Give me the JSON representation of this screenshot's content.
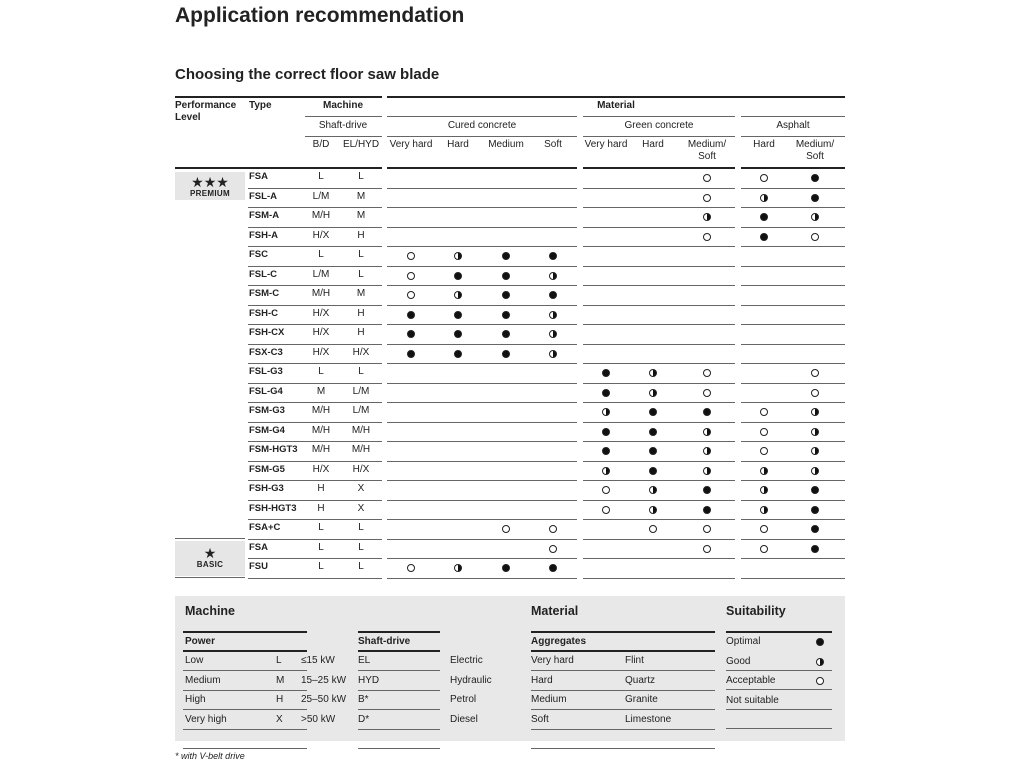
{
  "title": "Application recommendation",
  "subtitle": "Choosing the correct floor saw blade",
  "table": {
    "header": {
      "performance_level": "Performance Level",
      "type": "Type",
      "machine": "Machine",
      "shaft_drive": "Shaft-drive",
      "bd": "B/D",
      "elhyd": "EL/HYD",
      "material": "Material",
      "groups": [
        "Cured concrete",
        "Green concrete",
        "Asphalt"
      ],
      "columns": [
        "Very hard",
        "Hard",
        "Medium",
        "Soft",
        "Very hard",
        "Hard",
        "Medium/ Soft",
        "Hard",
        "Medium/ Soft"
      ]
    },
    "levels": [
      {
        "stars": "★★★",
        "label": "PREMIUM"
      },
      {
        "stars": "★",
        "label": "BASIC"
      }
    ],
    "rows": [
      {
        "type": "FSA",
        "bd": "L",
        "elhyd": "L",
        "r": [
          "",
          "",
          "",
          "",
          "",
          "",
          "acceptable",
          "acceptable",
          "optimal"
        ]
      },
      {
        "type": "FSL-A",
        "bd": "L/M",
        "elhyd": "M",
        "r": [
          "",
          "",
          "",
          "",
          "",
          "",
          "acceptable",
          "good",
          "optimal"
        ]
      },
      {
        "type": "FSM-A",
        "bd": "M/H",
        "elhyd": "M",
        "r": [
          "",
          "",
          "",
          "",
          "",
          "",
          "good",
          "optimal",
          "good"
        ]
      },
      {
        "type": "FSH-A",
        "bd": "H/X",
        "elhyd": "H",
        "r": [
          "",
          "",
          "",
          "",
          "",
          "",
          "acceptable",
          "optimal",
          "acceptable"
        ]
      },
      {
        "type": "FSC",
        "bd": "L",
        "elhyd": "L",
        "r": [
          "acceptable",
          "good",
          "optimal",
          "optimal",
          "",
          "",
          "",
          "",
          ""
        ]
      },
      {
        "type": "FSL-C",
        "bd": "L/M",
        "elhyd": "L",
        "r": [
          "acceptable",
          "optimal",
          "optimal",
          "good",
          "",
          "",
          "",
          "",
          ""
        ]
      },
      {
        "type": "FSM-C",
        "bd": "M/H",
        "elhyd": "M",
        "r": [
          "acceptable",
          "good",
          "optimal",
          "optimal",
          "",
          "",
          "",
          "",
          ""
        ]
      },
      {
        "type": "FSH-C",
        "bd": "H/X",
        "elhyd": "H",
        "r": [
          "optimal",
          "optimal",
          "optimal",
          "good",
          "",
          "",
          "",
          "",
          ""
        ]
      },
      {
        "type": "FSH-CX",
        "bd": "H/X",
        "elhyd": "H",
        "r": [
          "optimal",
          "optimal",
          "optimal",
          "good",
          "",
          "",
          "",
          "",
          ""
        ]
      },
      {
        "type": "FSX-C3",
        "bd": "H/X",
        "elhyd": "H/X",
        "r": [
          "optimal",
          "optimal",
          "optimal",
          "good",
          "",
          "",
          "",
          "",
          ""
        ]
      },
      {
        "type": "FSL-G3",
        "bd": "L",
        "elhyd": "L",
        "r": [
          "",
          "",
          "",
          "",
          "optimal",
          "good",
          "acceptable",
          "",
          "acceptable"
        ]
      },
      {
        "type": "FSL-G4",
        "bd": "M",
        "elhyd": "L/M",
        "r": [
          "",
          "",
          "",
          "",
          "optimal",
          "good",
          "acceptable",
          "",
          "acceptable"
        ]
      },
      {
        "type": "FSM-G3",
        "bd": "M/H",
        "elhyd": "L/M",
        "r": [
          "",
          "",
          "",
          "",
          "good",
          "optimal",
          "optimal",
          "acceptable",
          "good"
        ]
      },
      {
        "type": "FSM-G4",
        "bd": "M/H",
        "elhyd": "M/H",
        "r": [
          "",
          "",
          "",
          "",
          "optimal",
          "optimal",
          "good",
          "acceptable",
          "good"
        ]
      },
      {
        "type": "FSM-HGT3",
        "bd": "M/H",
        "elhyd": "M/H",
        "r": [
          "",
          "",
          "",
          "",
          "optimal",
          "optimal",
          "good",
          "acceptable",
          "good"
        ]
      },
      {
        "type": "FSM-G5",
        "bd": "H/X",
        "elhyd": "H/X",
        "r": [
          "",
          "",
          "",
          "",
          "good",
          "optimal",
          "good",
          "good",
          "good"
        ]
      },
      {
        "type": "FSH-G3",
        "bd": "H",
        "elhyd": "X",
        "r": [
          "",
          "",
          "",
          "",
          "acceptable",
          "good",
          "optimal",
          "good",
          "optimal"
        ]
      },
      {
        "type": "FSH-HGT3",
        "bd": "H",
        "elhyd": "X",
        "r": [
          "",
          "",
          "",
          "",
          "acceptable",
          "good",
          "optimal",
          "good",
          "optimal"
        ]
      },
      {
        "type": "FSA+C",
        "bd": "L",
        "elhyd": "L",
        "r": [
          "",
          "",
          "acceptable",
          "acceptable",
          "",
          "acceptable",
          "acceptable",
          "acceptable",
          "optimal"
        ]
      },
      {
        "type": "FSA",
        "bd": "L",
        "elhyd": "L",
        "r": [
          "",
          "",
          "",
          "acceptable",
          "",
          "",
          "acceptable",
          "acceptable",
          "optimal"
        ]
      },
      {
        "type": "FSU",
        "bd": "L",
        "elhyd": "L",
        "r": [
          "acceptable",
          "good",
          "optimal",
          "optimal",
          "",
          "",
          "",
          "",
          ""
        ]
      }
    ]
  },
  "legend": {
    "machine_title": "Machine",
    "material_title": "Material",
    "suitability_title": "Suitability",
    "power": {
      "title": "Power",
      "rows": [
        [
          "Low",
          "L",
          "≤15 kW"
        ],
        [
          "Medium",
          "M",
          "15–25 kW"
        ],
        [
          "High",
          "H",
          "25–50 kW"
        ],
        [
          "Very high",
          "X",
          ">50 kW"
        ]
      ]
    },
    "shaft": {
      "title": "Shaft-drive",
      "rows": [
        [
          "EL",
          "Electric"
        ],
        [
          "HYD",
          "Hydraulic"
        ],
        [
          "B*",
          "Petrol"
        ],
        [
          "D*",
          "Diesel"
        ]
      ]
    },
    "aggregates": {
      "title": "Aggregates",
      "rows": [
        [
          "Very hard",
          "Flint"
        ],
        [
          "Hard",
          "Quartz"
        ],
        [
          "Medium",
          "Granite"
        ],
        [
          "Soft",
          "Limestone"
        ]
      ]
    },
    "suitability": {
      "rows": [
        [
          "Optimal",
          "optimal"
        ],
        [
          "Good",
          "good"
        ],
        [
          "Acceptable",
          "acceptable"
        ],
        [
          "Not suitable",
          ""
        ]
      ]
    }
  },
  "footnote": "* with V-belt drive",
  "colors": {
    "rule": "#222222",
    "legend_bg": "#e8e8e8",
    "badge_bg": "#e6e6e6"
  }
}
